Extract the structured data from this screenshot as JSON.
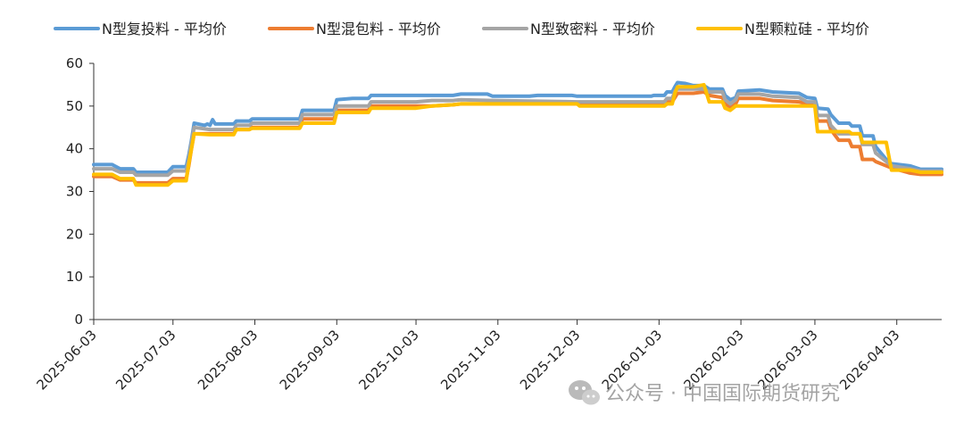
{
  "chart_data": {
    "type": "line",
    "title": "",
    "xlabel": "",
    "ylabel": "",
    "ylim": [
      0,
      60
    ],
    "yticks": [
      "0",
      "10",
      "20",
      "30",
      "40",
      "50",
      "60"
    ],
    "x_ticks": [
      "2025-06-03",
      "2025-07-03",
      "2025-08-03",
      "2025-09-03",
      "2025-10-03",
      "2025-11-03",
      "2025-12-03",
      "2026-01-03",
      "2026-02-03",
      "2026-03-03",
      "2026-04-03"
    ],
    "x_range": [
      "2025-06-03",
      "2026-04-20"
    ],
    "grid": false,
    "legend_position": "top",
    "series": [
      {
        "name": "N型复投料 - 平均价",
        "color": "#5b9bd5",
        "points": [
          [
            "2025-06-03",
            36.3
          ],
          [
            "2025-06-10",
            36.3
          ],
          [
            "2025-06-13",
            35.3
          ],
          [
            "2025-06-18",
            35.3
          ],
          [
            "2025-06-19",
            34.5
          ],
          [
            "2025-06-30",
            34.5
          ],
          [
            "2025-07-01",
            34.5
          ],
          [
            "2025-07-03",
            35.8
          ],
          [
            "2025-07-08",
            35.8
          ],
          [
            "2025-07-09",
            38.5
          ],
          [
            "2025-07-10",
            42.0
          ],
          [
            "2025-07-11",
            46.0
          ],
          [
            "2025-07-15",
            45.5
          ],
          [
            "2025-07-16",
            45.8
          ],
          [
            "2025-07-17",
            45.5
          ],
          [
            "2025-07-18",
            46.8
          ],
          [
            "2025-07-19",
            45.8
          ],
          [
            "2025-07-26",
            45.8
          ],
          [
            "2025-07-27",
            46.5
          ],
          [
            "2025-08-01",
            46.5
          ],
          [
            "2025-08-02",
            47.0
          ],
          [
            "2025-08-20",
            47.0
          ],
          [
            "2025-08-21",
            49.0
          ],
          [
            "2025-09-02",
            49.0
          ],
          [
            "2025-09-03",
            51.5
          ],
          [
            "2025-09-09",
            51.8
          ],
          [
            "2025-09-15",
            51.8
          ],
          [
            "2025-09-16",
            52.5
          ],
          [
            "2025-10-03",
            52.5
          ],
          [
            "2025-10-09",
            52.5
          ],
          [
            "2025-10-17",
            52.5
          ],
          [
            "2025-10-20",
            52.8
          ],
          [
            "2025-10-30",
            52.8
          ],
          [
            "2025-11-01",
            52.3
          ],
          [
            "2025-11-15",
            52.3
          ],
          [
            "2025-11-18",
            52.5
          ],
          [
            "2025-12-01",
            52.5
          ],
          [
            "2025-12-03",
            52.3
          ],
          [
            "2025-12-31",
            52.3
          ],
          [
            "2026-01-01",
            52.5
          ],
          [
            "2026-01-05",
            52.5
          ],
          [
            "2026-01-06",
            53.3
          ],
          [
            "2026-01-08",
            53.3
          ],
          [
            "2026-01-09",
            54.5
          ],
          [
            "2026-01-10",
            55.5
          ],
          [
            "2026-01-13",
            55.3
          ],
          [
            "2026-01-16",
            54.8
          ],
          [
            "2026-01-20",
            54.8
          ],
          [
            "2026-01-22",
            54.0
          ],
          [
            "2026-01-27",
            54.0
          ],
          [
            "2026-01-28",
            52.5
          ],
          [
            "2026-01-30",
            51.5
          ],
          [
            "2026-02-01",
            52.0
          ],
          [
            "2026-02-02",
            53.5
          ],
          [
            "2026-02-10",
            53.8
          ],
          [
            "2026-02-15",
            53.3
          ],
          [
            "2026-02-25",
            53.0
          ],
          [
            "2026-02-28",
            52.0
          ],
          [
            "2026-03-03",
            51.8
          ],
          [
            "2026-03-04",
            49.5
          ],
          [
            "2026-03-08",
            49.3
          ],
          [
            "2026-03-09",
            48.0
          ],
          [
            "2026-03-12",
            46.0
          ],
          [
            "2026-03-16",
            46.0
          ],
          [
            "2026-03-17",
            45.3
          ],
          [
            "2026-03-20",
            45.3
          ],
          [
            "2026-03-21",
            43.0
          ],
          [
            "2026-03-25",
            43.0
          ],
          [
            "2026-03-26",
            40.5
          ],
          [
            "2026-03-28",
            39.0
          ],
          [
            "2026-03-30",
            37.5
          ],
          [
            "2026-04-01",
            36.5
          ],
          [
            "2026-04-08",
            36.0
          ],
          [
            "2026-04-12",
            35.2
          ],
          [
            "2026-04-20",
            35.2
          ]
        ]
      },
      {
        "name": "N型混包料 - 平均价",
        "color": "#ed7d31",
        "points": [
          [
            "2025-06-03",
            33.5
          ],
          [
            "2025-06-10",
            33.5
          ],
          [
            "2025-06-13",
            32.7
          ],
          [
            "2025-06-18",
            32.7
          ],
          [
            "2025-06-19",
            32.0
          ],
          [
            "2025-06-30",
            32.0
          ],
          [
            "2025-07-01",
            32.0
          ],
          [
            "2025-07-03",
            33.0
          ],
          [
            "2025-07-08",
            33.0
          ],
          [
            "2025-07-09",
            36.0
          ],
          [
            "2025-07-10",
            40.0
          ],
          [
            "2025-07-11",
            43.5
          ],
          [
            "2025-07-17",
            43.5
          ],
          [
            "2025-07-26",
            43.5
          ],
          [
            "2025-07-27",
            44.5
          ],
          [
            "2025-08-01",
            44.5
          ],
          [
            "2025-08-02",
            45.0
          ],
          [
            "2025-08-20",
            45.0
          ],
          [
            "2025-08-21",
            47.0
          ],
          [
            "2025-09-02",
            47.0
          ],
          [
            "2025-09-03",
            49.0
          ],
          [
            "2025-09-15",
            49.0
          ],
          [
            "2025-09-16",
            50.0
          ],
          [
            "2025-10-03",
            50.0
          ],
          [
            "2025-10-09",
            50.0
          ],
          [
            "2025-10-17",
            50.3
          ],
          [
            "2025-10-20",
            50.5
          ],
          [
            "2025-11-01",
            50.5
          ],
          [
            "2025-12-03",
            50.5
          ],
          [
            "2025-12-31",
            50.5
          ],
          [
            "2026-01-01",
            50.5
          ],
          [
            "2026-01-05",
            50.5
          ],
          [
            "2026-01-06",
            51.0
          ],
          [
            "2026-01-08",
            51.0
          ],
          [
            "2026-01-09",
            52.0
          ],
          [
            "2026-01-10",
            53.0
          ],
          [
            "2026-01-16",
            53.0
          ],
          [
            "2026-01-20",
            53.3
          ],
          [
            "2026-01-22",
            52.5
          ],
          [
            "2026-01-27",
            52.0
          ],
          [
            "2026-01-28",
            50.5
          ],
          [
            "2026-01-30",
            49.8
          ],
          [
            "2026-02-01",
            50.5
          ],
          [
            "2026-02-02",
            51.8
          ],
          [
            "2026-02-10",
            51.8
          ],
          [
            "2026-02-15",
            51.3
          ],
          [
            "2026-02-25",
            51.0
          ],
          [
            "2026-02-28",
            50.5
          ],
          [
            "2026-03-03",
            50.3
          ],
          [
            "2026-03-04",
            46.5
          ],
          [
            "2026-03-08",
            46.5
          ],
          [
            "2026-03-09",
            44.5
          ],
          [
            "2026-03-12",
            42.0
          ],
          [
            "2026-03-16",
            42.0
          ],
          [
            "2026-03-17",
            40.5
          ],
          [
            "2026-03-20",
            40.5
          ],
          [
            "2026-03-21",
            37.5
          ],
          [
            "2026-03-25",
            37.5
          ],
          [
            "2026-03-26",
            37.0
          ],
          [
            "2026-03-28",
            36.5
          ],
          [
            "2026-03-30",
            36.0
          ],
          [
            "2026-04-01",
            35.5
          ],
          [
            "2026-04-08",
            34.3
          ],
          [
            "2026-04-12",
            34.0
          ],
          [
            "2026-04-20",
            34.0
          ]
        ]
      },
      {
        "name": "N型致密料 - 平均价",
        "color": "#a5a5a5",
        "points": [
          [
            "2025-06-03",
            35.3
          ],
          [
            "2025-06-10",
            35.3
          ],
          [
            "2025-06-13",
            34.5
          ],
          [
            "2025-06-18",
            34.5
          ],
          [
            "2025-06-19",
            33.8
          ],
          [
            "2025-06-30",
            33.8
          ],
          [
            "2025-07-01",
            33.8
          ],
          [
            "2025-07-03",
            34.8
          ],
          [
            "2025-07-08",
            34.8
          ],
          [
            "2025-07-09",
            37.5
          ],
          [
            "2025-07-10",
            41.5
          ],
          [
            "2025-07-11",
            45.0
          ],
          [
            "2025-07-17",
            44.5
          ],
          [
            "2025-07-26",
            44.5
          ],
          [
            "2025-07-27",
            45.5
          ],
          [
            "2025-08-01",
            45.5
          ],
          [
            "2025-08-02",
            46.0
          ],
          [
            "2025-08-20",
            46.0
          ],
          [
            "2025-08-21",
            48.0
          ],
          [
            "2025-09-02",
            48.0
          ],
          [
            "2025-09-03",
            50.0
          ],
          [
            "2025-09-15",
            50.0
          ],
          [
            "2025-09-16",
            51.0
          ],
          [
            "2025-10-03",
            51.0
          ],
          [
            "2025-10-09",
            51.3
          ],
          [
            "2025-10-17",
            51.3
          ],
          [
            "2025-10-20",
            51.5
          ],
          [
            "2025-11-01",
            51.3
          ],
          [
            "2025-12-03",
            51.0
          ],
          [
            "2025-12-31",
            51.0
          ],
          [
            "2026-01-01",
            51.0
          ],
          [
            "2026-01-05",
            51.0
          ],
          [
            "2026-01-06",
            51.8
          ],
          [
            "2026-01-08",
            51.8
          ],
          [
            "2026-01-09",
            53.5
          ],
          [
            "2026-01-10",
            54.0
          ],
          [
            "2026-01-16",
            54.0
          ],
          [
            "2026-01-20",
            54.0
          ],
          [
            "2026-01-22",
            53.3
          ],
          [
            "2026-01-27",
            53.3
          ],
          [
            "2026-01-28",
            51.5
          ],
          [
            "2026-01-30",
            50.5
          ],
          [
            "2026-02-01",
            51.5
          ],
          [
            "2026-02-02",
            52.8
          ],
          [
            "2026-02-10",
            52.8
          ],
          [
            "2026-02-15",
            52.3
          ],
          [
            "2026-02-25",
            52.0
          ],
          [
            "2026-02-28",
            51.0
          ],
          [
            "2026-03-03",
            51.0
          ],
          [
            "2026-03-04",
            47.8
          ],
          [
            "2026-03-08",
            47.8
          ],
          [
            "2026-03-09",
            45.5
          ],
          [
            "2026-03-12",
            43.5
          ],
          [
            "2026-03-16",
            43.5
          ],
          [
            "2026-03-17",
            43.5
          ],
          [
            "2026-03-20",
            43.5
          ],
          [
            "2026-03-21",
            41.0
          ],
          [
            "2026-03-25",
            41.0
          ],
          [
            "2026-03-26",
            39.0
          ],
          [
            "2026-03-28",
            38.0
          ],
          [
            "2026-03-30",
            37.0
          ],
          [
            "2026-04-01",
            36.0
          ],
          [
            "2026-04-08",
            35.3
          ],
          [
            "2026-04-12",
            34.8
          ],
          [
            "2026-04-20",
            34.8
          ]
        ]
      },
      {
        "name": "N型颗粒硅 - 平均价",
        "color": "#ffc000",
        "points": [
          [
            "2025-06-03",
            34.0
          ],
          [
            "2025-06-10",
            34.0
          ],
          [
            "2025-06-13",
            33.0
          ],
          [
            "2025-06-18",
            33.0
          ],
          [
            "2025-06-19",
            31.5
          ],
          [
            "2025-06-30",
            31.5
          ],
          [
            "2025-07-01",
            31.5
          ],
          [
            "2025-07-03",
            32.5
          ],
          [
            "2025-07-08",
            32.5
          ],
          [
            "2025-07-09",
            36.5
          ],
          [
            "2025-07-10",
            40.0
          ],
          [
            "2025-07-11",
            43.5
          ],
          [
            "2025-07-17",
            43.3
          ],
          [
            "2025-07-26",
            43.3
          ],
          [
            "2025-07-27",
            44.5
          ],
          [
            "2025-08-01",
            44.5
          ],
          [
            "2025-08-02",
            44.8
          ],
          [
            "2025-08-20",
            44.8
          ],
          [
            "2025-08-21",
            46.0
          ],
          [
            "2025-09-02",
            46.0
          ],
          [
            "2025-09-03",
            48.5
          ],
          [
            "2025-09-15",
            48.5
          ],
          [
            "2025-09-16",
            49.5
          ],
          [
            "2025-10-03",
            49.5
          ],
          [
            "2025-10-09",
            50.0
          ],
          [
            "2025-10-17",
            50.3
          ],
          [
            "2025-10-20",
            50.5
          ],
          [
            "2025-11-01",
            50.5
          ],
          [
            "2025-12-03",
            50.5
          ],
          [
            "2025-12-04",
            50.0
          ],
          [
            "2025-12-31",
            50.0
          ],
          [
            "2026-01-01",
            50.0
          ],
          [
            "2026-01-05",
            50.0
          ],
          [
            "2026-01-06",
            50.5
          ],
          [
            "2026-01-08",
            50.5
          ],
          [
            "2026-01-09",
            53.0
          ],
          [
            "2026-01-10",
            54.5
          ],
          [
            "2026-01-16",
            54.5
          ],
          [
            "2026-01-20",
            55.0
          ],
          [
            "2026-01-22",
            51.0
          ],
          [
            "2026-01-27",
            51.0
          ],
          [
            "2026-01-28",
            49.5
          ],
          [
            "2026-01-30",
            49.0
          ],
          [
            "2026-02-01",
            50.0
          ],
          [
            "2026-02-02",
            50.0
          ],
          [
            "2026-02-10",
            50.0
          ],
          [
            "2026-02-28",
            50.0
          ],
          [
            "2026-03-03",
            50.0
          ],
          [
            "2026-03-04",
            44.0
          ],
          [
            "2026-03-08",
            44.0
          ],
          [
            "2026-03-12",
            44.0
          ],
          [
            "2026-03-16",
            44.0
          ],
          [
            "2026-03-17",
            43.5
          ],
          [
            "2026-03-20",
            43.5
          ],
          [
            "2026-03-21",
            41.5
          ],
          [
            "2026-03-29",
            41.5
          ],
          [
            "2026-03-30",
            41.5
          ],
          [
            "2026-04-01",
            35.0
          ],
          [
            "2026-04-08",
            35.0
          ],
          [
            "2026-04-12",
            34.5
          ],
          [
            "2026-04-20",
            34.5
          ]
        ]
      }
    ]
  },
  "watermark": {
    "text": "公众号 · 中国国际期货研究",
    "icon": "wechat-icon"
  }
}
